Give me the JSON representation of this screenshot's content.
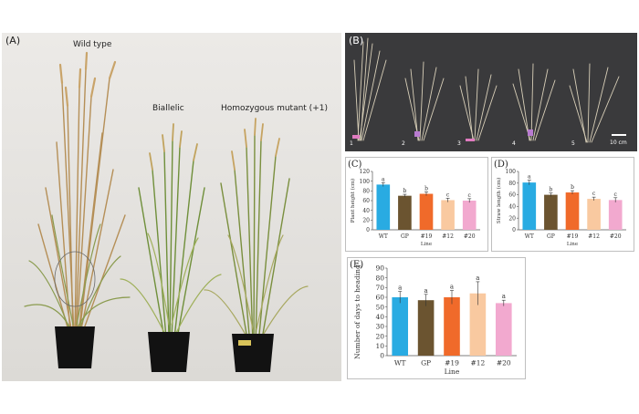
{
  "panel_a": {
    "label": "(A)",
    "captions": [
      "Wild type",
      "Biallelic",
      "Homozygous mutant (+1)"
    ]
  },
  "panel_b": {
    "label": "(B)",
    "plant_numbers": [
      "1",
      "2",
      "3",
      "4",
      "5"
    ],
    "scale_bar": "10 cm"
  },
  "chart_data": [
    {
      "panel": "(C)",
      "type": "bar",
      "categories": [
        "WT",
        "GP",
        "#19",
        "#12",
        "#20"
      ],
      "values": [
        93,
        70,
        74,
        61,
        60
      ],
      "errors": [
        4,
        3,
        4,
        4,
        4
      ],
      "letters": [
        "a",
        "b",
        "b",
        "c",
        "c"
      ],
      "colors": [
        "#29abe2",
        "#6b5430",
        "#f06a2a",
        "#f9c9a0",
        "#f2a9cf"
      ],
      "xlabel": "Line",
      "ylabel": "Plant height (cm)",
      "ylim": [
        0,
        120
      ],
      "yticks": [
        0,
        20,
        40,
        60,
        80,
        100,
        120
      ]
    },
    {
      "panel": "(D)",
      "type": "bar",
      "categories": [
        "WT",
        "GP",
        "#19",
        "#12",
        "#20"
      ],
      "values": [
        81,
        60,
        64,
        53,
        51
      ],
      "errors": [
        4,
        3,
        3,
        3,
        4
      ],
      "letters": [
        "a",
        "b",
        "b",
        "c",
        "c"
      ],
      "colors": [
        "#29abe2",
        "#6b5430",
        "#f06a2a",
        "#f9c9a0",
        "#f2a9cf"
      ],
      "xlabel": "Line",
      "ylabel": "Straw length (cm)",
      "ylim": [
        0,
        100
      ],
      "yticks": [
        0,
        20,
        40,
        60,
        80,
        100
      ]
    },
    {
      "panel": "(E)",
      "type": "bar",
      "categories": [
        "WT",
        "GP",
        "#19",
        "#12",
        "#20"
      ],
      "values": [
        60,
        57,
        60,
        64,
        54
      ],
      "errors": [
        6,
        6,
        7,
        12,
        3
      ],
      "letters": [
        "a",
        "a",
        "a",
        "a",
        "a"
      ],
      "colors": [
        "#29abe2",
        "#6b5430",
        "#f06a2a",
        "#f9c9a0",
        "#f2a9cf"
      ],
      "xlabel": "Line",
      "ylabel": "Number of days to heading",
      "ylim": [
        0,
        90
      ],
      "yticks": [
        0,
        10,
        20,
        30,
        40,
        50,
        60,
        70,
        80,
        90
      ]
    }
  ]
}
